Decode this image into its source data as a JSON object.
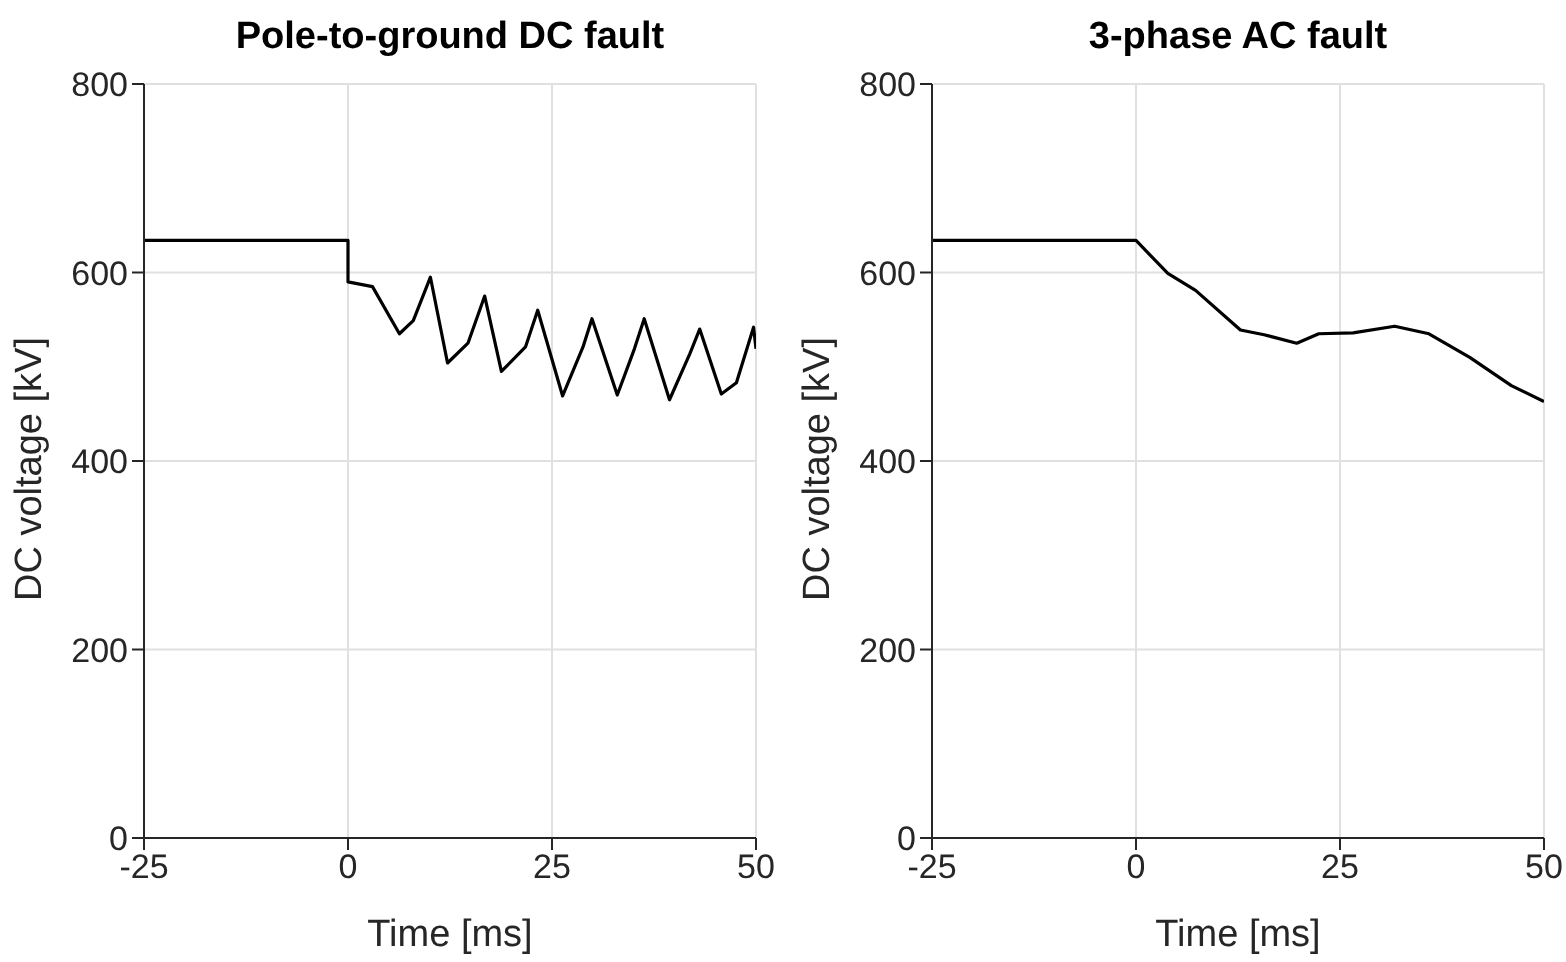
{
  "chart_data": [
    {
      "type": "line",
      "title": "Pole-to-ground DC fault",
      "xlabel": "Time [ms]",
      "ylabel": "DC voltage [kV]",
      "xlim": [
        -25,
        50
      ],
      "xticks": [
        -25,
        0,
        25,
        50
      ],
      "ylim": [
        0,
        800
      ],
      "yticks": [
        0,
        200,
        400,
        600,
        800
      ],
      "grid": true,
      "series": [
        {
          "color": "#000000",
          "x": [
            -25,
            0,
            0,
            3,
            6.3,
            8,
            10.1,
            12.2,
            14.7,
            16.75,
            18.8,
            21.75,
            23.25,
            26.3,
            28.8,
            29.9,
            33,
            35.1,
            36.3,
            39.4,
            41.9,
            43.1,
            45.75,
            47.6,
            49.7,
            50
          ],
          "values": [
            634,
            634,
            590,
            585,
            535,
            549,
            595,
            504,
            525,
            575,
            495,
            521,
            560,
            469,
            521,
            551,
            470,
            519,
            551,
            465,
            514,
            540,
            471,
            483,
            542,
            519
          ]
        }
      ]
    },
    {
      "type": "line",
      "title": "3-phase AC fault",
      "xlabel": "Time [ms]",
      "ylabel": "DC voltage [kV]",
      "xlim": [
        -25,
        50
      ],
      "xticks": [
        -25,
        0,
        25,
        50
      ],
      "ylim": [
        0,
        800
      ],
      "yticks": [
        0,
        200,
        400,
        600,
        800
      ],
      "grid": true,
      "series": [
        {
          "color": "#000000",
          "x": [
            -25,
            0,
            3.9,
            7.3,
            12.8,
            15.7,
            19.7,
            22.4,
            26.6,
            31.7,
            35.9,
            40.9,
            46,
            50
          ],
          "values": [
            634,
            634,
            599,
            581,
            539,
            534,
            525,
            535,
            536,
            543,
            535,
            510,
            480,
            463
          ]
        }
      ]
    }
  ]
}
